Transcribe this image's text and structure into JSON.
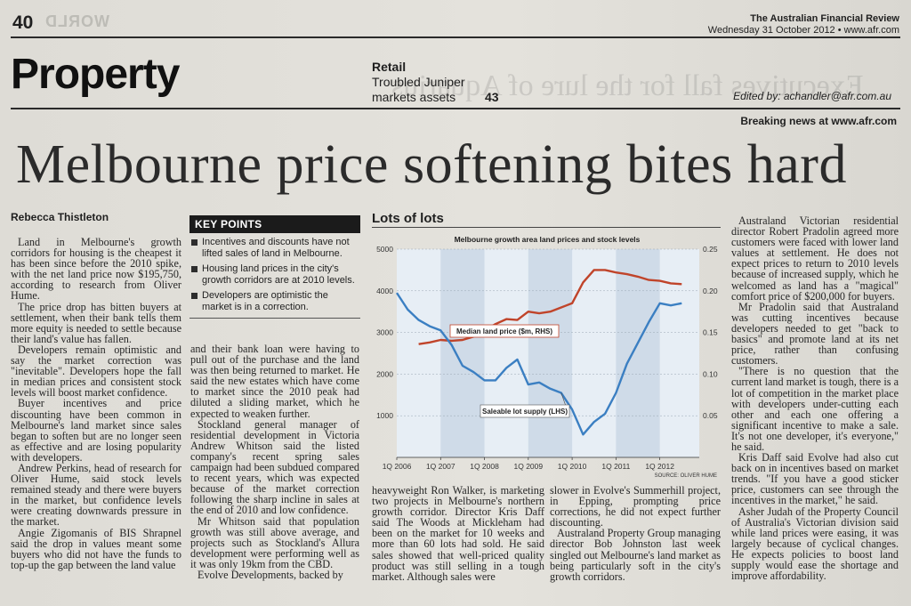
{
  "masthead": {
    "page_number": "40",
    "publication": "The Australian Financial Review",
    "dateline": "Wednesday 31 October 2012 • www.afr.com",
    "section": "Property",
    "teaser_label": "Retail",
    "teaser_line1": "Troubled Juniper",
    "teaser_line2": "markets assets",
    "teaser_page": "43",
    "editor": "Edited by: achandler@afr.com.au",
    "breaking": "Breaking news at www.afr.com"
  },
  "headline": "Melbourne price softening bites hard",
  "byline": "Rebecca Thistleton",
  "key_points": {
    "heading": "KEY POINTS",
    "items": [
      "Incentives and discounts have not lifted sales of land in Melbourne.",
      "Housing land prices in the city's growth corridors are at 2010 levels.",
      "Developers are optimistic the market is in a correction."
    ]
  },
  "article": {
    "col1": [
      "Land in Melbourne's growth corridors for housing is the cheapest it has been since before the 2010 spike, with the net land price now $195,750, according to research from Oliver Hume.",
      "The price drop has bitten buyers at settlement, when their bank tells them more equity is needed to settle because their land's value has fallen.",
      "Developers remain optimistic and say the market correction was \"inevitable\". Developers hope the fall in median prices and consistent stock levels will boost market confidence.",
      "Buyer incentives and price discounting have been common in Melbourne's land market since sales began to soften but are no longer seen as effective and are losing popularity with developers.",
      "Andrew Perkins, head of research for Oliver Hume, said stock levels remained steady and there were buyers in the market, but confidence levels were creating downwards pressure in the market.",
      "Angie Zigomanis of BIS Shrapnel said the drop in values meant some buyers who did not have the funds to top-up the gap between the land value"
    ],
    "col2": [
      "and their bank loan were having to pull out of the purchase and the land was then being returned to market. He said the new estates which have come to market since the 2010 peak had diluted a sliding market, which he expected to weaken further.",
      "Stockland general manager of residential development in Victoria Andrew Whitson said the listed company's recent spring sales campaign had been subdued compared to recent years, which was expected because of the market correction following the sharp incline in sales at the end of 2010 and low confidence.",
      "Mr Whitson said that population growth was still above average, and projects such as Stockland's Allura development were performing well as it was only 19km from the CBD.",
      "Evolve Developments, backed by"
    ],
    "col3": [
      "heavyweight Ron Walker, is marketing two projects in Melbourne's northern growth corridor. Director Kris Daff said The Woods at Mickleham had been on the market for 10 weeks and more than 60 lots had sold. He said sales showed that well-priced quality product was still selling in a tough market. Although sales were"
    ],
    "col4": [
      "slower in Evolve's Summerhill project, in Epping, prompting price corrections, he did not expect further discounting.",
      "Australand Property Group managing director Bob Johnston last week singled out Melbourne's land market as being particularly soft in the city's growth corridors."
    ],
    "col5": [
      "Australand Victorian residential director Robert Pradolin agreed more customers were faced with lower land values at settlement. He does not expect prices to return to 2010 levels because of increased supply, which he welcomed as land has a \"magical\" comfort price of $200,000 for buyers.",
      "Mr Pradolin said that Australand was cutting incentives because developers needed to get \"back to basics\" and promote land at its net price, rather than confusing customers.",
      "\"There is no question that the current land market is tough, there is a lot of competition in the market place with developers under-cutting each other and each one offering a significant incentive to make a sale. It's not one developer, it's everyone,\" he said.",
      "Kris Daff said Evolve had also cut back on in incentives based on market trends. \"If you have a good sticker price, customers can see through the incentives in the market,\" he said.",
      "Asher Judah of the Property Council of Australia's Victorian division said while land prices were easing, it was largely because of cyclical changes. He expects policies to boost land supply would ease the shortage and improve affordability."
    ]
  },
  "chart_data": {
    "type": "line",
    "heading": "Lots of lots",
    "title": "Melbourne growth area land prices and stock levels",
    "source": "SOURCE: OLIVER HUME",
    "x_ticks": [
      "1Q 2006",
      "1Q 2007",
      "1Q 2008",
      "1Q 2009",
      "1Q 2010",
      "1Q 2011",
      "1Q 2012"
    ],
    "y_left": {
      "ticks": [
        "5000",
        "4000",
        "3000",
        "2000",
        "1000"
      ],
      "ylim": [
        0,
        5000
      ]
    },
    "y_right": {
      "ticks": [
        "0.25",
        "0.20",
        "0.15",
        "0.10",
        "0.05"
      ],
      "ylim": [
        0,
        0.25
      ]
    },
    "x_range": [
      2006.0,
      2012.9
    ],
    "grid": true,
    "series": [
      {
        "name": "Median land price ($m, RHS)",
        "axis": "right",
        "color": "#c0442a",
        "x": [
          2006.5,
          2006.75,
          2007.0,
          2007.25,
          2007.5,
          2007.75,
          2008.0,
          2008.25,
          2008.5,
          2008.75,
          2009.0,
          2009.25,
          2009.5,
          2009.75,
          2010.0,
          2010.25,
          2010.5,
          2010.75,
          2011.0,
          2011.25,
          2011.5,
          2011.75,
          2012.0,
          2012.25,
          2012.5
        ],
        "values": [
          0.136,
          0.138,
          0.141,
          0.14,
          0.141,
          0.145,
          0.152,
          0.16,
          0.166,
          0.165,
          0.175,
          0.173,
          0.175,
          0.18,
          0.185,
          0.21,
          0.225,
          0.225,
          0.222,
          0.22,
          0.217,
          0.213,
          0.212,
          0.209,
          0.208
        ]
      },
      {
        "name": "Saleable lot supply (LHS)",
        "axis": "left",
        "color": "#3b7fc2",
        "x": [
          2006.0,
          2006.25,
          2006.5,
          2006.75,
          2007.0,
          2007.25,
          2007.5,
          2007.75,
          2008.0,
          2008.25,
          2008.5,
          2008.75,
          2009.0,
          2009.25,
          2009.5,
          2009.75,
          2010.0,
          2010.25,
          2010.5,
          2010.75,
          2011.0,
          2011.25,
          2011.5,
          2011.75,
          2012.0,
          2012.25,
          2012.5
        ],
        "values": [
          3950,
          3550,
          3300,
          3150,
          3050,
          2700,
          2200,
          2050,
          1850,
          1850,
          2150,
          2350,
          1750,
          1800,
          1650,
          1550,
          1150,
          550,
          850,
          1050,
          1550,
          2250,
          2750,
          3250,
          3700,
          3650,
          3700
        ]
      }
    ]
  },
  "colors": {
    "chart_bg": "#cfdbe8",
    "chart_band": "#e7eef5",
    "price_line": "#c0442a",
    "supply_line": "#3b7fc2",
    "label_box_border": "#c0442a"
  }
}
